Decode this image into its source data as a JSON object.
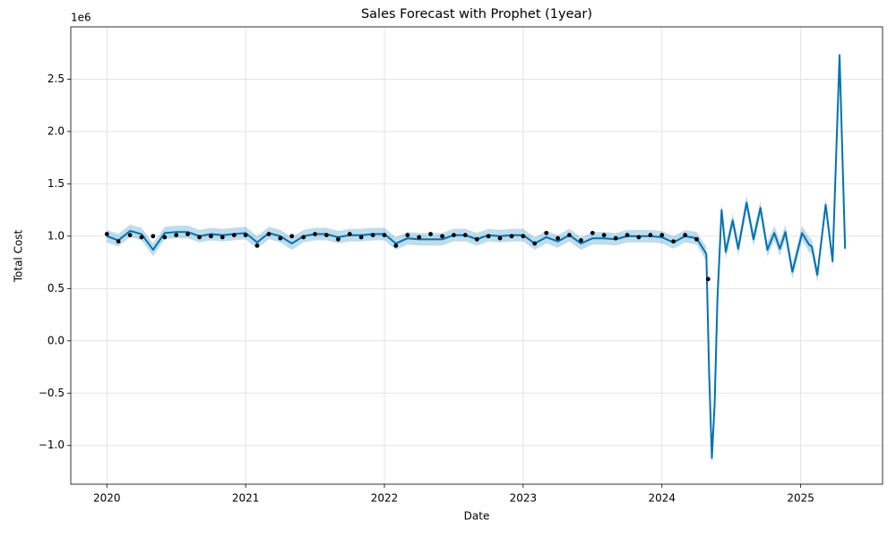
{
  "chart_data": {
    "type": "line",
    "title": "Sales Forecast with Prophet (1year)",
    "x_label": "Date",
    "y_label": "Total Cost",
    "y_offset_label": "1e6",
    "xlim": [
      2019.74,
      2025.59
    ],
    "ylim": [
      -1.37,
      3.0
    ],
    "xticks": [
      2020,
      2021,
      2022,
      2023,
      2024,
      2025
    ],
    "yticks": [
      {
        "value": -1,
        "label": "−1.0"
      },
      {
        "value": -0.5,
        "label": "−0.5"
      },
      {
        "value": 0,
        "label": "0.0"
      },
      0.5,
      {
        "value": 1,
        "label": "1.0"
      },
      1.5,
      {
        "value": 2,
        "label": "2.0"
      },
      2.5
    ],
    "grid": true,
    "observed": {
      "color": "#000000",
      "x": [
        2020,
        2020.083,
        2020.167,
        2020.25,
        2020.333,
        2020.417,
        2020.5,
        2020.583,
        2020.667,
        2020.75,
        2020.833,
        2020.917,
        2021,
        2021.083,
        2021.167,
        2021.25,
        2021.333,
        2021.417,
        2021.5,
        2021.583,
        2021.667,
        2021.75,
        2021.833,
        2021.917,
        2022,
        2022.083,
        2022.167,
        2022.25,
        2022.333,
        2022.417,
        2022.5,
        2022.583,
        2022.667,
        2022.75,
        2022.833,
        2022.917,
        2023,
        2023.083,
        2023.167,
        2023.25,
        2023.333,
        2023.417,
        2023.5,
        2023.583,
        2023.667,
        2023.75,
        2023.833,
        2023.917,
        2024,
        2024.083,
        2024.167,
        2024.25,
        2024.333
      ],
      "values": [
        1.02,
        0.95,
        1.01,
        0.99,
        1.0,
        0.99,
        1.01,
        1.02,
        0.99,
        1.0,
        0.99,
        1.01,
        1.01,
        0.91,
        1.02,
        0.98,
        1.0,
        0.99,
        1.02,
        1.01,
        0.97,
        1.02,
        0.99,
        1.01,
        1.01,
        0.91,
        1.01,
        0.99,
        1.02,
        1.0,
        1.01,
        1.01,
        0.97,
        1.0,
        0.98,
        1.0,
        1.0,
        0.93,
        1.03,
        0.98,
        1.01,
        0.96,
        1.03,
        1.01,
        0.98,
        1.01,
        0.99,
        1.01,
        1.01,
        0.95,
        1.01,
        0.97,
        0.59
      ]
    },
    "forecast": {
      "color": "#0072b2",
      "band_color": "#0072b2",
      "x": [
        2020,
        2020.083,
        2020.167,
        2020.25,
        2020.333,
        2020.417,
        2020.5,
        2020.583,
        2020.667,
        2020.75,
        2020.833,
        2020.917,
        2021,
        2021.083,
        2021.167,
        2021.25,
        2021.333,
        2021.417,
        2021.5,
        2021.583,
        2021.667,
        2021.75,
        2021.833,
        2021.917,
        2022,
        2022.083,
        2022.167,
        2022.25,
        2022.333,
        2022.417,
        2022.5,
        2022.583,
        2022.667,
        2022.75,
        2022.833,
        2022.917,
        2023,
        2023.083,
        2023.167,
        2023.25,
        2023.333,
        2023.417,
        2023.5,
        2023.583,
        2023.667,
        2023.75,
        2023.833,
        2023.917,
        2024,
        2024.083,
        2024.167,
        2024.25,
        2024.32,
        2024.34,
        2024.36,
        2024.38,
        2024.4,
        2024.43,
        2024.46,
        2024.51,
        2024.55,
        2024.61,
        2024.66,
        2024.71,
        2024.76,
        2024.81,
        2024.85,
        2024.89,
        2024.94,
        2025.01,
        2025.06,
        2025.08,
        2025.12,
        2025.18,
        2025.23,
        2025.28,
        2025.32
      ],
      "values": [
        1.0,
        0.96,
        1.05,
        1.02,
        0.87,
        1.03,
        1.04,
        1.04,
        1.0,
        1.02,
        1.01,
        1.02,
        1.03,
        0.94,
        1.03,
        1.0,
        0.93,
        1.0,
        1.02,
        1.02,
        0.99,
        1.01,
        1.01,
        1.02,
        1.02,
        0.93,
        0.98,
        0.97,
        0.97,
        0.97,
        1.01,
        1.01,
        0.97,
        1.01,
        1.0,
        1.01,
        1.01,
        0.93,
        0.99,
        0.95,
        1.01,
        0.93,
        0.98,
        0.98,
        0.97,
        1.0,
        1.0,
        1.0,
        0.99,
        0.94,
        1.0,
        0.98,
        0.83,
        -0.3,
        -1.12,
        -0.6,
        0.4,
        1.25,
        0.85,
        1.15,
        0.88,
        1.32,
        0.97,
        1.27,
        0.87,
        1.03,
        0.88,
        1.04,
        0.66,
        1.03,
        0.92,
        0.9,
        0.63,
        1.3,
        0.76,
        2.73,
        0.88
      ],
      "lower": [
        0.94,
        0.9,
        0.99,
        0.96,
        0.81,
        0.97,
        0.98,
        0.98,
        0.94,
        0.96,
        0.95,
        0.96,
        0.97,
        0.88,
        0.97,
        0.94,
        0.87,
        0.94,
        0.96,
        0.96,
        0.93,
        0.95,
        0.95,
        0.96,
        0.96,
        0.87,
        0.92,
        0.91,
        0.91,
        0.91,
        0.95,
        0.95,
        0.91,
        0.95,
        0.94,
        0.95,
        0.95,
        0.87,
        0.93,
        0.89,
        0.95,
        0.87,
        0.92,
        0.92,
        0.91,
        0.94,
        0.94,
        0.94,
        0.93,
        0.88,
        0.94,
        0.92,
        0.76,
        -0.37,
        -1.19,
        -0.67,
        0.33,
        1.18,
        0.78,
        1.08,
        0.81,
        1.25,
        0.9,
        1.2,
        0.8,
        0.96,
        0.81,
        0.97,
        0.59,
        0.96,
        0.85,
        0.83,
        0.56,
        1.23,
        0.69,
        2.66,
        0.81
      ],
      "upper": [
        1.06,
        1.02,
        1.11,
        1.08,
        0.93,
        1.09,
        1.1,
        1.1,
        1.06,
        1.08,
        1.07,
        1.08,
        1.09,
        1.0,
        1.09,
        1.06,
        0.99,
        1.06,
        1.08,
        1.08,
        1.05,
        1.07,
        1.07,
        1.08,
        1.08,
        0.99,
        1.04,
        1.03,
        1.03,
        1.03,
        1.07,
        1.07,
        1.03,
        1.07,
        1.06,
        1.07,
        1.07,
        0.99,
        1.05,
        1.01,
        1.07,
        0.99,
        1.04,
        1.04,
        1.03,
        1.06,
        1.06,
        1.06,
        1.05,
        1.0,
        1.06,
        1.04,
        0.9,
        -0.23,
        -1.05,
        -0.53,
        0.47,
        1.32,
        0.92,
        1.22,
        0.95,
        1.39,
        1.04,
        1.34,
        0.94,
        1.1,
        0.95,
        1.11,
        0.73,
        1.1,
        0.99,
        0.97,
        0.7,
        1.37,
        0.83,
        2.8,
        0.95
      ]
    }
  }
}
